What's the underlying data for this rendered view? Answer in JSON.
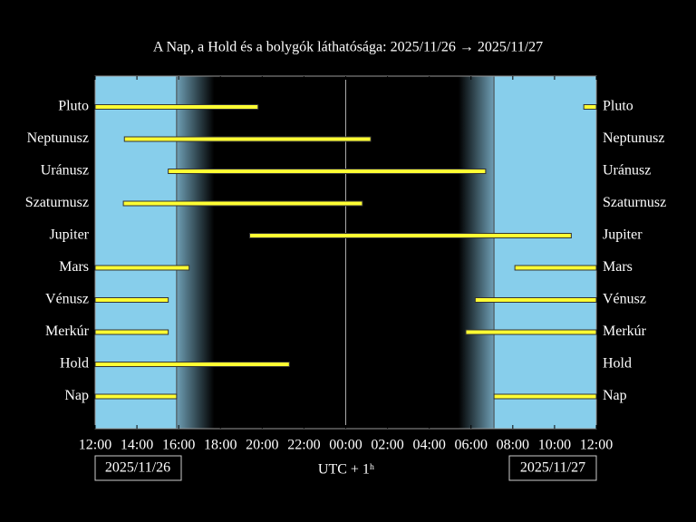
{
  "chart_data": {
    "type": "timeline",
    "title": "A Nap, a Hold és a bolygók láthatósága: 2025/11/26 → 2025/11/27",
    "xlabel": "UTC + 1ʰ",
    "start_date": "2025/11/26",
    "end_date": "2025/11/27",
    "xlim": [
      0,
      24
    ],
    "xticks": [
      {
        "value": 0,
        "label": "12:00"
      },
      {
        "value": 2,
        "label": "14:00"
      },
      {
        "value": 4,
        "label": "16:00"
      },
      {
        "value": 6,
        "label": "18:00"
      },
      {
        "value": 8,
        "label": "20:00"
      },
      {
        "value": 10,
        "label": "22:00"
      },
      {
        "value": 12,
        "label": "00:00"
      },
      {
        "value": 14,
        "label": "02:00"
      },
      {
        "value": 16,
        "label": "04:00"
      },
      {
        "value": 18,
        "label": "06:00"
      },
      {
        "value": 20,
        "label": "08:00"
      },
      {
        "value": 22,
        "label": "10:00"
      },
      {
        "value": 24,
        "label": "12:00"
      }
    ],
    "sunset": 3.9,
    "dusk_end": 5.7,
    "dawn_start": 17.4,
    "sunrise": 19.1,
    "midnight": 12,
    "day_color": "#87ceeb",
    "night_color": "#000000",
    "bar_color": "#ffff33",
    "categories": [
      "Pluto",
      "Neptunusz",
      "Uránusz",
      "Szaturnusz",
      "Jupiter",
      "Mars",
      "Vénusz",
      "Merkúr",
      "Hold",
      "Nap"
    ],
    "intervals": [
      [
        [
          0,
          7.8
        ],
        [
          23.4,
          24
        ]
      ],
      [
        [
          1.4,
          13.2
        ]
      ],
      [
        [
          3.5,
          18.7
        ]
      ],
      [
        [
          1.35,
          12.8
        ]
      ],
      [
        [
          7.4,
          22.8
        ]
      ],
      [
        [
          0,
          4.5
        ],
        [
          20.1,
          24
        ]
      ],
      [
        [
          0,
          3.5
        ],
        [
          18.2,
          24
        ]
      ],
      [
        [
          0,
          3.5
        ],
        [
          17.75,
          24
        ]
      ],
      [
        [
          0,
          9.3
        ]
      ],
      [
        [
          0,
          3.9
        ],
        [
          19.1,
          24
        ]
      ]
    ]
  }
}
